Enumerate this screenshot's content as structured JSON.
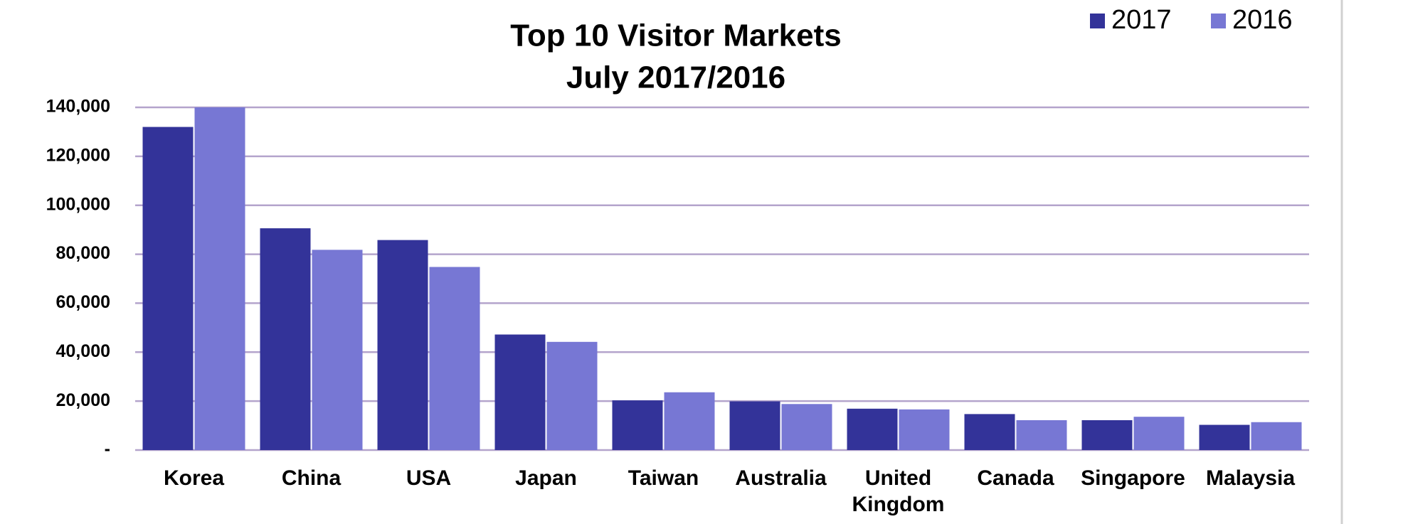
{
  "chart_data": {
    "type": "bar",
    "title": "Top 10 Visitor Markets",
    "subtitle": "July 2017/2016",
    "categories": [
      "Korea",
      "China",
      "USA",
      "Japan",
      "Taiwan",
      "Australia",
      "United Kingdom",
      "Canada",
      "Singapore",
      "Malaysia"
    ],
    "series": [
      {
        "name": "2017",
        "color": "#333399",
        "values": [
          132000,
          90600,
          85800,
          47200,
          20300,
          19900,
          16900,
          14700,
          12200,
          10300
        ]
      },
      {
        "name": "2016",
        "color": "#7777d4",
        "values": [
          140000,
          81800,
          74800,
          44200,
          23600,
          18800,
          16600,
          12200,
          13600,
          11400
        ]
      }
    ],
    "ylim": [
      0,
      140000
    ],
    "yticks": [
      {
        "value": 0,
        "label": "-"
      },
      {
        "value": 20000,
        "label": "20,000"
      },
      {
        "value": 40000,
        "label": "40,000"
      },
      {
        "value": 60000,
        "label": "60,000"
      },
      {
        "value": 80000,
        "label": "80,000"
      },
      {
        "value": 100000,
        "label": "100,000"
      },
      {
        "value": 120000,
        "label": "120,000"
      },
      {
        "value": 140000,
        "label": "140,000"
      }
    ],
    "grid": true,
    "legend": "top-right"
  }
}
